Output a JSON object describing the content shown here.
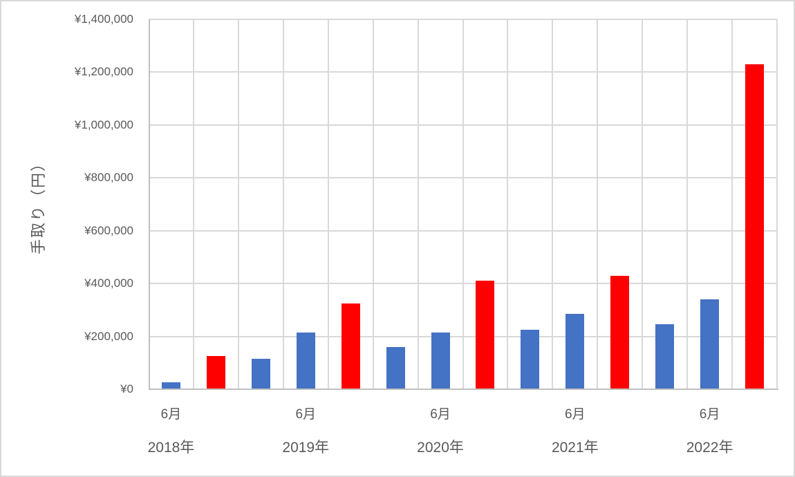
{
  "chart_data": {
    "type": "bar",
    "title": "",
    "xlabel": "",
    "ylabel": "手取り（円）",
    "ylim": [
      0,
      1400000
    ],
    "ytick_step": 200000,
    "grid": {
      "horizontal": true,
      "vertical": true
    },
    "legend": null,
    "n_slots": 14,
    "y_ticks": [
      {
        "value": 0,
        "label": "¥0"
      },
      {
        "value": 200000,
        "label": "¥200,000"
      },
      {
        "value": 400000,
        "label": "¥400,000"
      },
      {
        "value": 600000,
        "label": "¥600,000"
      },
      {
        "value": 800000,
        "label": "¥800,000"
      },
      {
        "value": 1000000,
        "label": "¥1,000,000"
      },
      {
        "value": 1200000,
        "label": "¥1,200,000"
      },
      {
        "value": 1400000,
        "label": "¥1,400,000"
      }
    ],
    "bars": [
      {
        "slot": 0,
        "value": 25000,
        "series": "blue"
      },
      {
        "slot": 1,
        "value": 125000,
        "series": "red"
      },
      {
        "slot": 2,
        "value": 115000,
        "series": "blue"
      },
      {
        "slot": 3,
        "value": 215000,
        "series": "blue"
      },
      {
        "slot": 4,
        "value": 325000,
        "series": "red"
      },
      {
        "slot": 5,
        "value": 160000,
        "series": "blue"
      },
      {
        "slot": 6,
        "value": 215000,
        "series": "blue"
      },
      {
        "slot": 7,
        "value": 410000,
        "series": "red"
      },
      {
        "slot": 8,
        "value": 225000,
        "series": "blue"
      },
      {
        "slot": 9,
        "value": 285000,
        "series": "blue"
      },
      {
        "slot": 10,
        "value": 430000,
        "series": "red"
      },
      {
        "slot": 11,
        "value": 245000,
        "series": "blue"
      },
      {
        "slot": 12,
        "value": 340000,
        "series": "blue"
      },
      {
        "slot": 13,
        "value": 1230000,
        "series": "red"
      }
    ],
    "x_tick_labels": [
      {
        "slot": 0,
        "month": "6月",
        "year": "2018年"
      },
      {
        "slot": 3,
        "month": "6月",
        "year": "2019年"
      },
      {
        "slot": 6,
        "month": "6月",
        "year": "2020年"
      },
      {
        "slot": 9,
        "month": "6月",
        "year": "2021年"
      },
      {
        "slot": 12,
        "month": "6月",
        "year": "2022年"
      }
    ],
    "colors": {
      "blue": "#4472C4",
      "red": "#FF0000",
      "gridline": "#D9D9D9",
      "axis_line": "#C0C0C0",
      "label": "#595959",
      "border": "#D9D9D9"
    }
  }
}
